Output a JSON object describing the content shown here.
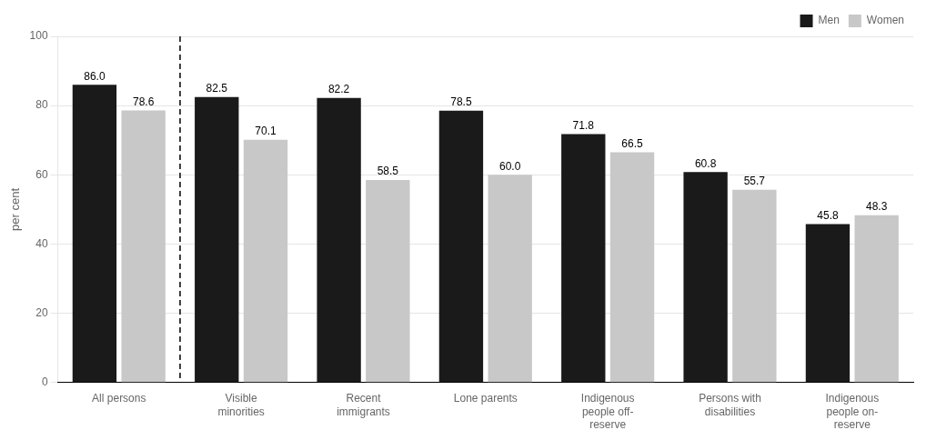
{
  "chart_data": {
    "type": "bar",
    "ylabel": "per cent",
    "categories": [
      "All persons",
      "Visible\nminorities",
      "Recent\nimmigrants",
      "Lone parents",
      "Indigenous\npeople off-\nreserve",
      "Persons with\ndisabilities",
      "Indigenous\npeople on-\nreserve"
    ],
    "series": [
      {
        "name": "Men",
        "color": "#1a1a1a",
        "values": [
          86.0,
          82.5,
          82.2,
          78.5,
          71.8,
          60.8,
          45.8
        ],
        "value_labels": [
          "86.0",
          "82.5",
          "82.2",
          "78.5",
          "71.8",
          "60.8",
          "45.8"
        ]
      },
      {
        "name": "Women",
        "color": "#c8c8c8",
        "values": [
          78.6,
          70.1,
          58.5,
          60.0,
          66.5,
          55.7,
          48.3
        ],
        "value_labels": [
          "78.6",
          "70.1",
          "58.5",
          "60.0",
          "66.5",
          "55.7",
          "48.3"
        ]
      }
    ],
    "ylim": [
      0,
      100
    ],
    "yticks": [
      0,
      20,
      40,
      60,
      80,
      100
    ],
    "grid": true,
    "legend": "upper right",
    "data_labels": true
  }
}
